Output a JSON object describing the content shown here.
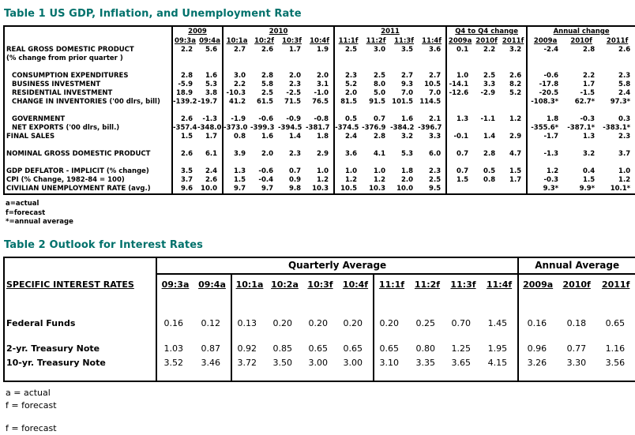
{
  "page": {
    "background": "#ffffff",
    "title_color": "#00716B"
  },
  "table1": {
    "title": "Table 1 US GDP, Inflation, and Unemployment  Rate",
    "groups": [
      {
        "label": "2009",
        "span": 2
      },
      {
        "label": "2010",
        "span": 4
      },
      {
        "label": "2011",
        "span": 4
      },
      {
        "label": "Q4 to Q4 change",
        "span": 3
      },
      {
        "label": "Annual change",
        "span": 3
      }
    ],
    "columns": [
      "09:3a",
      "09:4a",
      "10:1a",
      "10:2f",
      "10:3f",
      "10:4f",
      "11:1f",
      "11:2f",
      "11:3f",
      "11:4f",
      "2009a",
      "2010f",
      "2011f",
      "2009a",
      "2010f",
      "2011f"
    ],
    "rows": [
      {
        "label": "REAL GROSS DOMESTIC PRODUCT",
        "indent": false,
        "values": [
          "2.2",
          "5.6",
          "2.7",
          "2.6",
          "1.7",
          "1.9",
          "2.5",
          "3.0",
          "3.5",
          "3.6",
          "0.1",
          "2.2",
          "3.2",
          "-2.4",
          "2.8",
          "2.6"
        ]
      },
      {
        "label": "(% change from prior quarter )",
        "indent": false,
        "values": []
      },
      {
        "label": "",
        "values": []
      },
      {
        "label": "CONSUMPTION EXPENDITURES",
        "indent": true,
        "values": [
          "2.8",
          "1.6",
          "3.0",
          "2.8",
          "2.0",
          "2.0",
          "2.3",
          "2.5",
          "2.7",
          "2.7",
          "1.0",
          "2.5",
          "2.6",
          "-0.6",
          "2.2",
          "2.3"
        ]
      },
      {
        "label": "BUSINESS INVESTMENT",
        "indent": true,
        "values": [
          "-5.9",
          "5.3",
          "2.2",
          "5.8",
          "2.3",
          "3.1",
          "5.2",
          "8.0",
          "9.3",
          "10.5",
          "-14.1",
          "3.3",
          "8.2",
          "-17.8",
          "1.7",
          "5.8"
        ]
      },
      {
        "label": "RESIDENTIAL INVESTMENT",
        "indent": true,
        "values": [
          "18.9",
          "3.8",
          "-10.3",
          "2.5",
          "-2.5",
          "-1.0",
          "2.0",
          "5.0",
          "7.0",
          "7.0",
          "-12.6",
          "-2.9",
          "5.2",
          "-20.5",
          "-1.5",
          "2.4"
        ]
      },
      {
        "label": "CHANGE IN INVENTORIES ('00 dlrs, bill)",
        "indent": true,
        "values": [
          "-139.2",
          "-19.7",
          "41.2",
          "61.5",
          "71.5",
          "76.5",
          "81.5",
          "91.5",
          "101.5",
          "114.5",
          "",
          "",
          "",
          "-108.3*",
          "62.7*",
          "97.3*"
        ]
      },
      {
        "label": "",
        "values": []
      },
      {
        "label": "GOVERNMENT",
        "indent": true,
        "values": [
          "2.6",
          "-1.3",
          "-1.9",
          "-0.6",
          "-0.9",
          "-0.8",
          "0.5",
          "0.7",
          "1.6",
          "2.1",
          "1.3",
          "-1.1",
          "1.2",
          "1.8",
          "-0.3",
          "0.3"
        ]
      },
      {
        "label": "NET EXPORTS ('00 dlrs, bill.)",
        "indent": true,
        "values": [
          "-357.4",
          "-348.0",
          "-373.0",
          "-399.3",
          "-394.5",
          "-381.7",
          "-374.5",
          "-376.9",
          "-384.2",
          "-396.7",
          "",
          "",
          "",
          "-355.6*",
          "-387.1*",
          "-383.1*"
        ]
      },
      {
        "label": "FINAL SALES",
        "indent": false,
        "values": [
          "1.5",
          "1.7",
          "0.8",
          "1.6",
          "1.4",
          "1.8",
          "2.4",
          "2.8",
          "3.2",
          "3.3",
          "-0.1",
          "1.4",
          "2.9",
          "-1.7",
          "1.3",
          "2.3"
        ]
      },
      {
        "label": "",
        "values": []
      },
      {
        "label": "NOMINAL GROSS DOMESTIC PRODUCT",
        "indent": false,
        "values": [
          "2.6",
          "6.1",
          "3.9",
          "2.0",
          "2.3",
          "2.9",
          "3.6",
          "4.1",
          "5.3",
          "6.0",
          "0.7",
          "2.8",
          "4.7",
          "-1.3",
          "3.2",
          "3.7"
        ]
      },
      {
        "label": "",
        "values": []
      },
      {
        "label": "GDP DEFLATOR - IMPLICIT (% change)",
        "indent": false,
        "values": [
          "3.5",
          "2.4",
          "1.3",
          "-0.6",
          "0.7",
          "1.0",
          "1.0",
          "1.0",
          "1.8",
          "2.3",
          "0.7",
          "0.5",
          "1.5",
          "1.2",
          "0.4",
          "1.0"
        ]
      },
      {
        "label": "CPI (% Change, 1982-84 = 100)",
        "indent": false,
        "values": [
          "3.7",
          "2.6",
          "1.5",
          "-0.4",
          "0.9",
          "1.2",
          "1.2",
          "1.2",
          "2.0",
          "2.5",
          "1.5",
          "0.8",
          "1.7",
          "-0.3",
          "1.5",
          "1.2"
        ]
      },
      {
        "label": "CIVILIAN UNEMPLOYMENT RATE (avg.)",
        "indent": false,
        "values": [
          "9.6",
          "10.0",
          "9.7",
          "9.7",
          "9.8",
          "10.3",
          "10.5",
          "10.3",
          "10.0",
          "9.5",
          "",
          "",
          "",
          "9.3*",
          "9.9*",
          "10.1*"
        ]
      }
    ],
    "footnotes": [
      "a=actual",
      "f=forecast",
      "*=annual average"
    ]
  },
  "table2": {
    "title": "Table 2 Outlook for Interest Rates",
    "header_groups": [
      {
        "label": "Quarterly Average",
        "span": 10
      },
      {
        "label": "Annual Average",
        "span": 3
      }
    ],
    "row_header": "SPECIFIC INTEREST RATES",
    "columns": [
      "09:3a",
      "09:4a",
      "10:1a",
      "10:2a",
      "10:3f",
      "10:4f",
      "11:1f",
      "11:2f",
      "11:3f",
      "11:4f",
      "2009a",
      "2010f",
      "2011f"
    ],
    "rows": [
      {
        "label": "Federal Funds",
        "values": [
          "0.16",
          "0.12",
          "0.13",
          "0.20",
          "0.20",
          "0.20",
          "0.20",
          "0.25",
          "0.70",
          "1.45",
          "0.16",
          "0.18",
          "0.65"
        ]
      },
      {
        "label": "2-yr. Treasury Note",
        "values": [
          "1.03",
          "0.87",
          "0.92",
          "0.85",
          "0.65",
          "0.65",
          "0.65",
          "0.80",
          "1.25",
          "1.95",
          "0.96",
          "0.77",
          "1.16"
        ]
      },
      {
        "label": "10-yr. Treasury Note",
        "values": [
          "3.52",
          "3.46",
          "3.72",
          "3.50",
          "3.00",
          "3.00",
          "3.10",
          "3.35",
          "3.65",
          "4.15",
          "3.26",
          "3.30",
          "3.56"
        ]
      }
    ],
    "footnotes": [
      "a = actual",
      "f = forecast",
      "f = forecast"
    ]
  }
}
